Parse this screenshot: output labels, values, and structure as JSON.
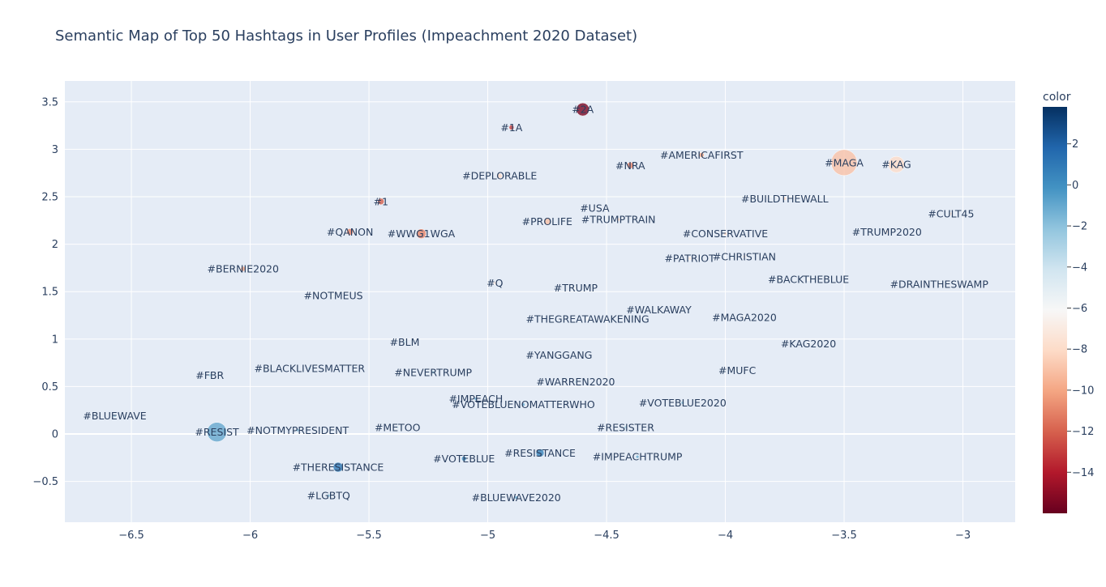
{
  "chart_data": {
    "type": "scatter",
    "title": "Semantic Map of Top 50 Hashtags in User Profiles (Impeachment 2020 Dataset)",
    "xlabel": "",
    "ylabel": "",
    "xlim": [
      -6.78,
      -2.78
    ],
    "ylim": [
      -0.93,
      3.72
    ],
    "xticks": [
      -6.5,
      -6,
      -5.5,
      -5,
      -4.5,
      -4,
      -3.5,
      -3
    ],
    "xtick_labels": [
      "−6.5",
      "−6",
      "−5.5",
      "−5",
      "−4.5",
      "−4",
      "−3.5",
      "−3"
    ],
    "yticks": [
      -0.5,
      0,
      0.5,
      1,
      1.5,
      2,
      2.5,
      3,
      3.5
    ],
    "ytick_labels": [
      "−0.5",
      "0",
      "0.5",
      "1",
      "1.5",
      "2",
      "2.5",
      "3",
      "3.5"
    ],
    "grid": true,
    "colorbar": {
      "title": "color",
      "colorscale": "RdBu",
      "range": [
        -16,
        3.8
      ],
      "ticks": [
        2,
        0,
        -2,
        -4,
        -6,
        -8,
        -10,
        -12,
        -14
      ],
      "tick_labels": [
        "2",
        "0",
        "−2",
        "−4",
        "−6",
        "−8",
        "−10",
        "−12",
        "−14"
      ]
    },
    "points": [
      {
        "label": "#2A",
        "x": -4.6,
        "y": 3.42,
        "color": -15.5,
        "size": 8
      },
      {
        "label": "#1A",
        "x": -4.9,
        "y": 3.23,
        "color": -13,
        "size": 3
      },
      {
        "label": "#AMERICAFIRST",
        "x": -4.1,
        "y": 2.94,
        "color": -10,
        "size": 3
      },
      {
        "label": "#MAGA",
        "x": -3.5,
        "y": 2.86,
        "color": -9,
        "size": 16
      },
      {
        "label": "#KAG",
        "x": -3.28,
        "y": 2.84,
        "color": -8,
        "size": 10
      },
      {
        "label": "#NRA",
        "x": -4.4,
        "y": 2.83,
        "color": -11,
        "size": 4
      },
      {
        "label": "#DEPLORABLE",
        "x": -4.95,
        "y": 2.72,
        "color": -8,
        "size": 3
      },
      {
        "label": "#BUILDTHEWALL",
        "x": -3.75,
        "y": 2.48,
        "color": -8,
        "size": 2
      },
      {
        "label": "#1",
        "x": -5.45,
        "y": 2.45,
        "color": -12,
        "size": 4
      },
      {
        "label": "#USA",
        "x": -4.55,
        "y": 2.38,
        "color": -6,
        "size": 2
      },
      {
        "label": "#CULT45",
        "x": -3.05,
        "y": 2.32,
        "color": -7,
        "size": 2
      },
      {
        "label": "#TRUMPTRAIN",
        "x": -4.45,
        "y": 2.26,
        "color": -8,
        "size": 2
      },
      {
        "label": "#PROLIFE",
        "x": -4.75,
        "y": 2.24,
        "color": -9,
        "size": 4
      },
      {
        "label": "#QANON",
        "x": -5.58,
        "y": 2.13,
        "color": -11,
        "size": 4
      },
      {
        "label": "#TRUMP2020",
        "x": -3.32,
        "y": 2.13,
        "color": -7,
        "size": 2
      },
      {
        "label": "#WWG1WGA",
        "x": -5.28,
        "y": 2.11,
        "color": -11,
        "size": 6
      },
      {
        "label": "#CONSERVATIVE",
        "x": -4.0,
        "y": 2.11,
        "color": -8,
        "size": 2
      },
      {
        "label": "#PATRIOT",
        "x": -4.15,
        "y": 1.85,
        "color": -7,
        "size": 2
      },
      {
        "label": "#CHRISTIAN",
        "x": -3.92,
        "y": 1.87,
        "color": -7,
        "size": 2
      },
      {
        "label": "#BERNIE2020",
        "x": -6.03,
        "y": 1.74,
        "color": -10,
        "size": 3
      },
      {
        "label": "#BACKTHEBLUE",
        "x": -3.65,
        "y": 1.63,
        "color": -6,
        "size": 2
      },
      {
        "label": "#Q",
        "x": -4.97,
        "y": 1.59,
        "color": -7,
        "size": 2
      },
      {
        "label": "#DRAINTHESWAMP",
        "x": -3.1,
        "y": 1.58,
        "color": -6,
        "size": 2
      },
      {
        "label": "#TRUMP",
        "x": -4.63,
        "y": 1.54,
        "color": -6,
        "size": 2
      },
      {
        "label": "#NOTMEUS",
        "x": -5.65,
        "y": 1.46,
        "color": -5,
        "size": 2
      },
      {
        "label": "#WALKAWAY",
        "x": -4.28,
        "y": 1.31,
        "color": -6,
        "size": 2
      },
      {
        "label": "#MAGA2020",
        "x": -3.92,
        "y": 1.23,
        "color": -6,
        "size": 2
      },
      {
        "label": "#THEGREATAWAKENING",
        "x": -4.58,
        "y": 1.21,
        "color": -6,
        "size": 2
      },
      {
        "label": "#BLM",
        "x": -5.35,
        "y": 0.97,
        "color": -4,
        "size": 2
      },
      {
        "label": "#KAG2020",
        "x": -3.65,
        "y": 0.95,
        "color": -6,
        "size": 2
      },
      {
        "label": "#YANGGANG",
        "x": -4.7,
        "y": 0.83,
        "color": -5,
        "size": 2
      },
      {
        "label": "#MUFC",
        "x": -3.95,
        "y": 0.67,
        "color": -5,
        "size": 2
      },
      {
        "label": "#NEVERTRUMP",
        "x": -5.23,
        "y": 0.65,
        "color": -3,
        "size": 2
      },
      {
        "label": "#BLACKLIVESMATTER",
        "x": -5.75,
        "y": 0.69,
        "color": -3,
        "size": 2
      },
      {
        "label": "#FBR",
        "x": -6.17,
        "y": 0.62,
        "color": -3,
        "size": 2
      },
      {
        "label": "#WARREN2020",
        "x": -4.63,
        "y": 0.55,
        "color": -4,
        "size": 2
      },
      {
        "label": "#IMPEACH",
        "x": -5.05,
        "y": 0.37,
        "color": -1,
        "size": 2
      },
      {
        "label": "#VOTEBLUE2020",
        "x": -4.18,
        "y": 0.33,
        "color": -2,
        "size": 2
      },
      {
        "label": "#VOTEBLUENOMATTERWHO",
        "x": -4.85,
        "y": 0.31,
        "color": -1,
        "size": 2
      },
      {
        "label": "#BLUEWAVE",
        "x": -6.57,
        "y": 0.19,
        "color": -3,
        "size": 2
      },
      {
        "label": "#METOO",
        "x": -5.38,
        "y": 0.07,
        "color": -4,
        "size": 2
      },
      {
        "label": "#RESISTER",
        "x": -4.42,
        "y": 0.07,
        "color": -3,
        "size": 2
      },
      {
        "label": "#RESIST",
        "x": -6.14,
        "y": 0.02,
        "color": -1,
        "size": 12
      },
      {
        "label": "#NOTMYPRESIDENT",
        "x": -5.8,
        "y": 0.04,
        "color": -2,
        "size": 2
      },
      {
        "label": "#RESISTANCE",
        "x": -4.78,
        "y": -0.2,
        "color": 0.5,
        "size": 5
      },
      {
        "label": "#IMPEACHTRUMP",
        "x": -4.37,
        "y": -0.24,
        "color": -1,
        "size": 2
      },
      {
        "label": "#VOTEBLUE",
        "x": -5.1,
        "y": -0.26,
        "color": 0,
        "size": 3
      },
      {
        "label": "#THERESISTANCE",
        "x": -5.63,
        "y": -0.35,
        "color": 1,
        "size": 6
      },
      {
        "label": "#LGBTQ",
        "x": -5.67,
        "y": -0.65,
        "color": -2,
        "size": 2
      },
      {
        "label": "#BLUEWAVE2020",
        "x": -4.88,
        "y": -0.67,
        "color": -1,
        "size": 2
      }
    ]
  }
}
